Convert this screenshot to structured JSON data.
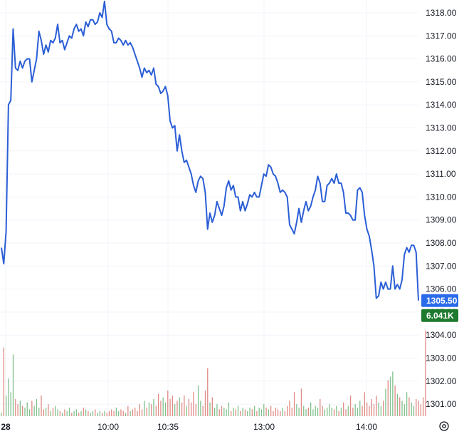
{
  "chart_data": {
    "type": "line",
    "title": "",
    "xlabel": "",
    "ylabel": "",
    "ylim": [
      1300.5,
      1318.6
    ],
    "grid": true,
    "x_ticks": [
      "28",
      "10:00",
      "10:35",
      "13:00",
      "14:00"
    ],
    "y_ticks": [
      "1318.00",
      "1317.00",
      "1316.00",
      "1315.00",
      "1314.00",
      "1313.00",
      "1312.00",
      "1311.00",
      "1310.00",
      "1309.00",
      "1308.00",
      "1307.00",
      "1306.00",
      "1305.00",
      "1304.00",
      "1303.00",
      "1302.00",
      "1301.00"
    ],
    "series": [
      {
        "values": [
          1307.8,
          1307.1,
          1308.5,
          1314.0,
          1314.2,
          1317.3,
          1315.6,
          1315.5,
          1315.9,
          1315.6,
          1315.9,
          1316.0,
          1316.0,
          1315.0,
          1315.5,
          1316.0,
          1317.2,
          1316.8,
          1316.2,
          1316.6,
          1316.3,
          1316.8,
          1316.7,
          1316.9,
          1317.5,
          1316.7,
          1316.8,
          1316.4,
          1316.7,
          1317.0,
          1316.9,
          1317.3,
          1317.5,
          1317.2,
          1317.3,
          1317.0,
          1317.6,
          1317.4,
          1317.7,
          1317.7,
          1317.5,
          1317.6,
          1318.0,
          1317.8,
          1318.5,
          1317.5,
          1317.3,
          1317.2,
          1316.7,
          1316.7,
          1316.9,
          1316.8,
          1316.6,
          1316.8,
          1316.6,
          1316.7,
          1316.5,
          1316.2,
          1315.9,
          1315.6,
          1315.2,
          1315.6,
          1315.4,
          1315.5,
          1315.3,
          1315.6,
          1314.9,
          1314.8,
          1314.5,
          1314.6,
          1314.8,
          1314.4,
          1313.3,
          1313.0,
          1313.1,
          1312.0,
          1312.7,
          1312.0,
          1311.5,
          1311.6,
          1311.3,
          1311.0,
          1310.5,
          1310.2,
          1310.7,
          1310.9,
          1310.8,
          1310.2,
          1308.6,
          1309.3,
          1308.9,
          1309.2,
          1309.8,
          1309.5,
          1309.2,
          1309.6,
          1310.4,
          1310.7,
          1310.3,
          1310.5,
          1310.0,
          1310.0,
          1309.4,
          1309.8,
          1309.4,
          1309.7,
          1310.1,
          1310.0,
          1310.2,
          1310.0,
          1310.0,
          1310.5,
          1311.0,
          1310.9,
          1311.4,
          1311.3,
          1311.0,
          1310.9,
          1310.6,
          1310.2,
          1310.3,
          1310.2,
          1310.0,
          1308.8,
          1308.6,
          1308.4,
          1308.9,
          1309.5,
          1308.9,
          1309.4,
          1309.8,
          1309.4,
          1309.6,
          1310.0,
          1310.3,
          1310.9,
          1310.6,
          1309.8,
          1309.8,
          1310.5,
          1310.6,
          1310.8,
          1310.6,
          1311.0,
          1310.6,
          1310.6,
          1310.2,
          1309.3,
          1309.3,
          1309.2,
          1309.0,
          1309.0,
          1310.3,
          1310.4,
          1310.2,
          1309.2,
          1308.6,
          1308.3,
          1307.7,
          1307.0,
          1305.6,
          1305.7,
          1306.3,
          1306.0,
          1306.3,
          1306.0,
          1306.0,
          1307.0,
          1306.0,
          1306.2,
          1306.0,
          1306.4,
          1307.5,
          1307.8,
          1307.6,
          1307.9,
          1307.9,
          1307.6,
          1305.5
        ],
        "line_color": "#2b5ed6"
      }
    ],
    "volume": {
      "values": [
        0.2,
        4.0,
        1.2,
        2.2,
        1.4,
        3.6,
        1.0,
        0.7,
        0.9,
        0.6,
        0.5,
        0.8,
        0.4,
        0.9,
        0.6,
        1.0,
        0.5,
        1.2,
        0.4,
        0.5,
        0.7,
        0.3,
        0.5,
        0.6,
        0.4,
        0.3,
        0.2,
        0.4,
        0.3,
        0.5,
        0.2,
        0.3,
        0.4,
        0.2,
        0.3,
        0.5,
        0.4,
        0.3,
        0.2,
        0.3,
        0.4,
        0.2,
        0.3,
        0.2,
        0.3,
        0.2,
        0.3,
        0.4,
        0.3,
        0.5,
        0.3,
        0.4,
        0.3,
        0.2,
        0.6,
        0.3,
        0.4,
        0.5,
        0.3,
        0.7,
        0.4,
        0.9,
        0.5,
        0.8,
        0.7,
        1.0,
        0.6,
        1.3,
        0.9,
        1.1,
        0.8,
        1.5,
        1.0,
        1.2,
        0.7,
        0.9,
        1.1,
        0.8,
        1.2,
        0.6,
        1.0,
        0.8,
        1.4,
        0.7,
        1.8,
        0.9,
        0.6,
        1.5,
        2.8,
        0.8,
        1.1,
        0.5,
        0.7,
        0.4,
        0.6,
        0.5,
        0.4,
        0.8,
        0.3,
        0.5,
        0.4,
        0.6,
        0.3,
        0.5,
        0.4,
        0.3,
        0.5,
        0.4,
        0.6,
        0.3,
        0.5,
        0.4,
        0.7,
        0.5,
        0.4,
        0.6,
        0.3,
        0.5,
        0.4,
        0.3,
        0.5,
        0.3,
        0.6,
        0.9,
        0.5,
        1.4,
        0.7,
        0.5,
        1.6,
        0.6,
        0.4,
        0.5,
        0.8,
        0.4,
        0.6,
        0.5,
        1.0,
        0.6,
        0.4,
        0.5,
        0.7,
        0.5,
        0.4,
        0.6,
        0.3,
        0.5,
        0.8,
        0.4,
        0.6,
        1.2,
        0.5,
        0.7,
        0.5,
        0.9,
        0.6,
        1.4,
        0.8,
        0.6,
        1.0,
        0.7,
        1.2,
        0.8,
        0.6,
        0.9,
        1.6,
        2.1,
        2.3,
        2.6,
        1.8,
        1.3,
        1.1,
        0.9,
        0.7,
        1.4,
        1.1,
        0.8,
        0.6,
        1.0,
        0.9,
        0.7,
        1.1,
        5.0
      ],
      "up_color": "#7fc08d",
      "down_color": "#e08a84",
      "max": 5.4
    },
    "last_price": {
      "label": "1305.50",
      "value": 1305.5,
      "color": "#2b6bea"
    },
    "last_volume": {
      "label": "6.041K",
      "color": "#1d7a2e"
    },
    "settings_icon": "gear-icon"
  }
}
